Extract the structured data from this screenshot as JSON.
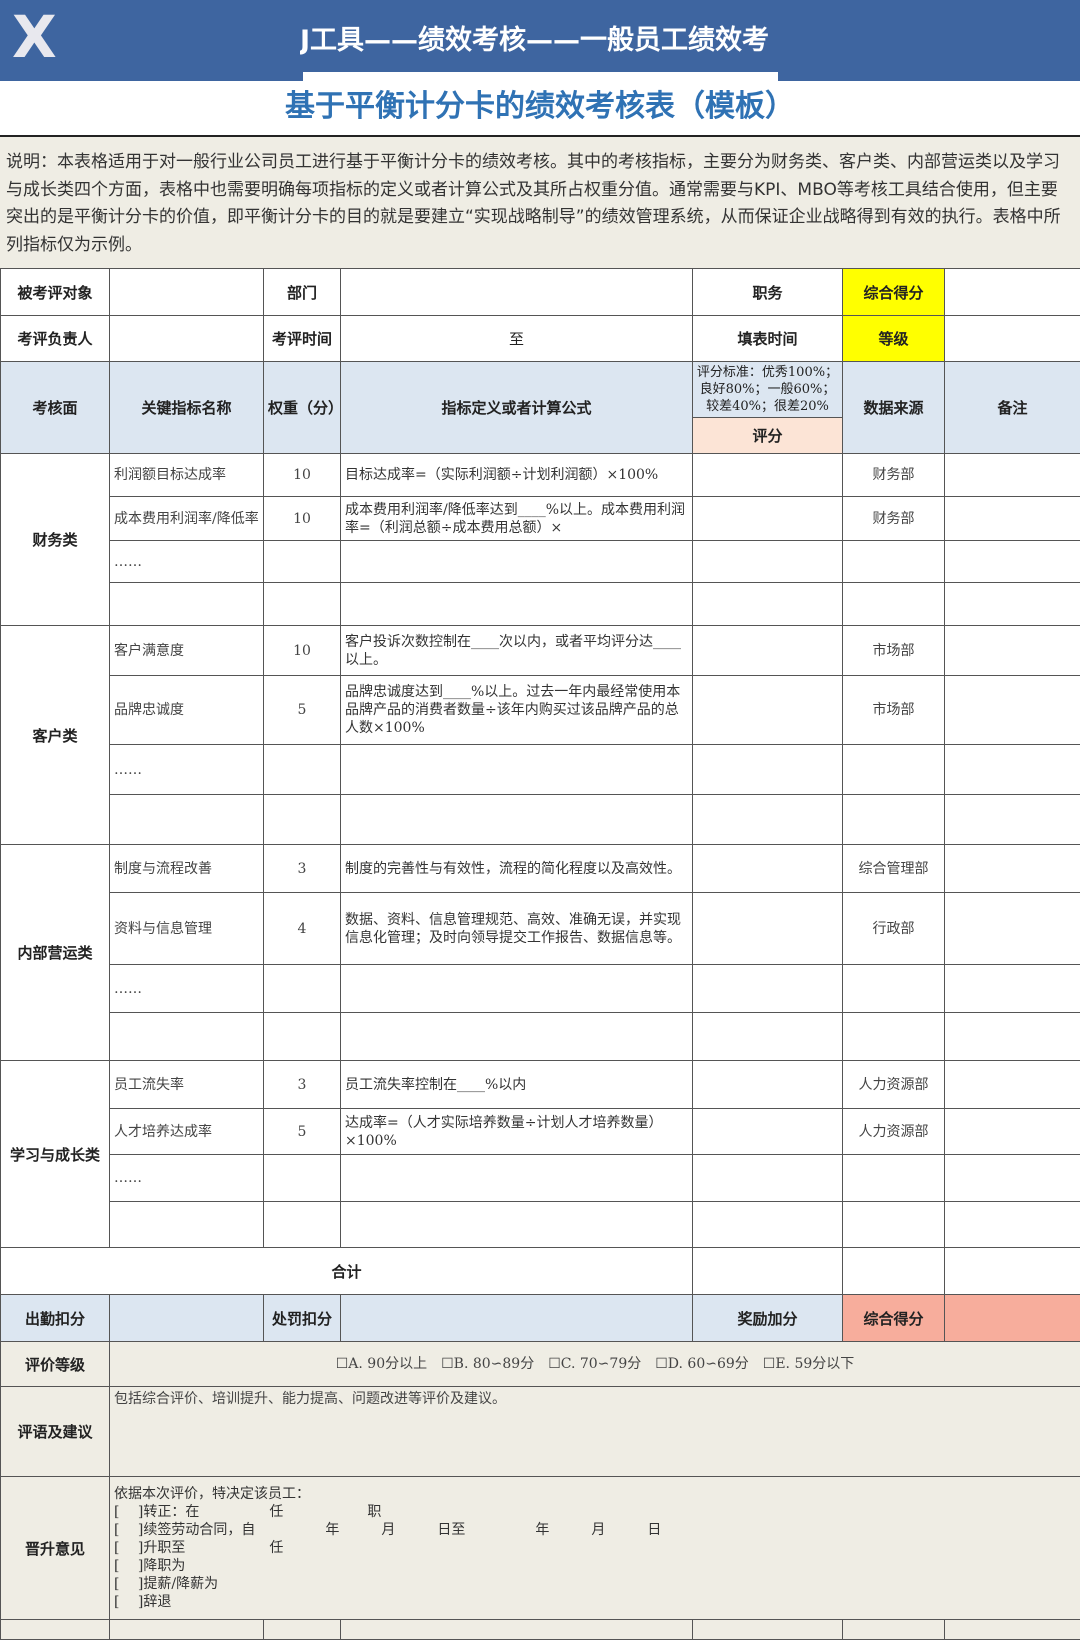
{
  "banner": {
    "title": "J工具——绩效考核——一般员工绩效考"
  },
  "title": "基于平衡计分卡的绩效考核表（模板）",
  "description": "说明：本表格适用于对一般行业公司员工进行基于平衡计分卡的绩效考核。其中的考核指标，主要分为财务类、客户类、内部营运类以及学习与成长类四个方面，表格中也需要明确每项指标的定义或者计算公式及其所占权重分值。通常需要与KPI、MBO等考核工具结合使用，但主要突出的是平衡计分卡的价值，即平衡计分卡的目的就是要建立“实现战略制导”的绩效管理系统，从而保证企业战略得到有效的执行。表格中所列指标仅为示例。",
  "info": {
    "target": "被考评对象",
    "dept": "部门",
    "position": "职务",
    "total": "综合得分",
    "owner": "考评负责人",
    "period": "考评时间",
    "to": "至",
    "filldate": "填表时间",
    "grade": "等级"
  },
  "header": {
    "aspect": "考核面",
    "kpi": "关键指标名称",
    "weight": "权重（分）",
    "formula": "指标定义或者计算公式",
    "criteria": "评分标准：优秀100%；良好80%；一般60%；较差40%；很差20%",
    "score": "评分",
    "source": "数据来源",
    "remark": "备注"
  },
  "groups": [
    {
      "name": "财务类",
      "rows": [
        {
          "kpi": "利润额目标达成率",
          "weight": "10",
          "formula": "目标达成率=（实际利润额÷计划利润额）×100%",
          "source": "财务部"
        },
        {
          "kpi": "成本费用利润率/降低率",
          "weight": "10",
          "formula": "成本费用利润率/降低率达到____%以上。成本费用利润率=（利润总额÷成本费用总额）×",
          "source": "财务部"
        },
        {
          "kpi": "……",
          "weight": "",
          "formula": "",
          "source": ""
        },
        {
          "kpi": "",
          "weight": "",
          "formula": "",
          "source": ""
        }
      ]
    },
    {
      "name": "客户类",
      "rows": [
        {
          "kpi": "客户满意度",
          "weight": "10",
          "formula": "客户投诉次数控制在____次以内，或者平均评分达____以上。",
          "source": "市场部"
        },
        {
          "kpi": "品牌忠诚度",
          "weight": "5",
          "formula": "品牌忠诚度达到____%以上。过去一年内最经常使用本品牌产品的消费者数量÷该年内购买过该品牌产品的总人数×100%",
          "source": "市场部"
        },
        {
          "kpi": "……",
          "weight": "",
          "formula": "",
          "source": ""
        },
        {
          "kpi": "",
          "weight": "",
          "formula": "",
          "source": ""
        }
      ]
    },
    {
      "name": "内部营运类",
      "rows": [
        {
          "kpi": "制度与流程改善",
          "weight": "3",
          "formula": "制度的完善性与有效性，流程的简化程度以及高效性。",
          "source": "综合管理部"
        },
        {
          "kpi": "资料与信息管理",
          "weight": "4",
          "formula": "数据、资料、信息管理规范、高效、准确无误，并实现信息化管理；及时向领导提交工作报告、数据信息等。",
          "source": "行政部"
        },
        {
          "kpi": "……",
          "weight": "",
          "formula": "",
          "source": ""
        },
        {
          "kpi": "",
          "weight": "",
          "formula": "",
          "source": ""
        }
      ]
    },
    {
      "name": "学习与成长类",
      "rows": [
        {
          "kpi": "员工流失率",
          "weight": "3",
          "formula": "员工流失率控制在____%以内",
          "source": "人力资源部"
        },
        {
          "kpi": "人才培养达成率",
          "weight": "5",
          "formula": "达成率=（人才实际培养数量÷计划人才培养数量）×100%",
          "source": "人力资源部"
        },
        {
          "kpi": "……",
          "weight": "",
          "formula": "",
          "source": ""
        },
        {
          "kpi": "",
          "weight": "",
          "formula": "",
          "source": ""
        }
      ]
    }
  ],
  "sum_label": "合计",
  "bottom": {
    "attendance": "出勤扣分",
    "penalty": "处罚扣分",
    "bonus": "奖励加分",
    "total": "综合得分",
    "grade_label": "评价等级",
    "grade_options": "☐A. 90分以上　☐B. 80∽89分　☐C. 70∽79分　☐D. 60∽69分　☐E. 59分以下",
    "comment_label": "评语及建议",
    "comment_text": "包括综合评价、培训提升、能力提高、问题改进等评价及建议。",
    "promo_label": "晋升意见",
    "promo_lines": [
      "依据本次评价，特决定该员工：",
      "[　 ]转正：在　　　　　任　　　　　　职",
      "[　 ]续签劳动合同，自　　　　　年　　　月　　　日至　　　　　年　　　月　　　日",
      "[　 ]升职至　　　　　　任",
      "[　 ]降职为",
      "[　 ]提薪/降薪为",
      "[　 ]辞退"
    ]
  },
  "colors": {
    "banner": "#3e65a0",
    "title": "#2f72b4",
    "header_bg": "#dce6f1",
    "yellow": "#ffff00",
    "score_bg": "#fce4d6",
    "total_bg": "#f7ad9c",
    "note_bg": "#efede4"
  }
}
